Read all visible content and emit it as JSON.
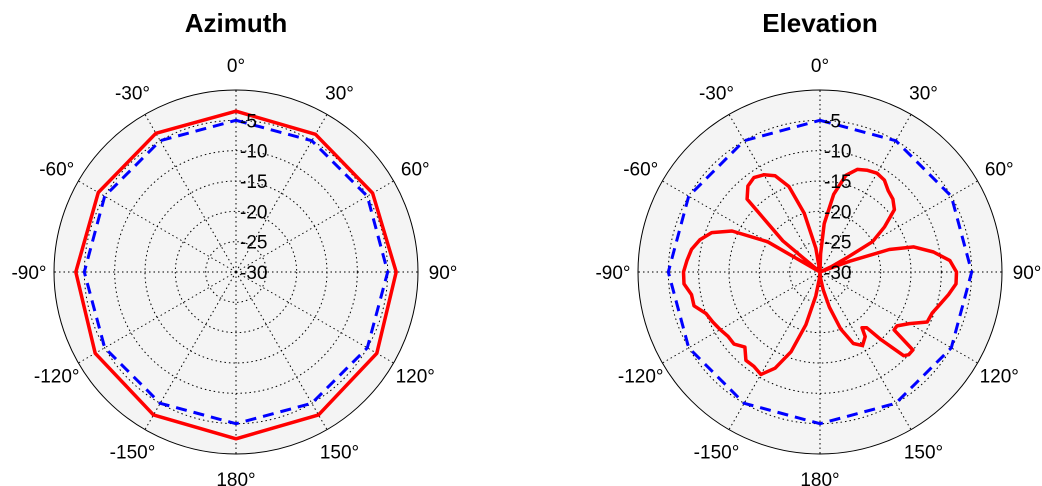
{
  "chart_data": [
    {
      "type": "polar",
      "title": "Azimuth",
      "rlim": [
        -30,
        0
      ],
      "r_ticks": [
        "-5",
        "-10",
        "-15",
        "-20",
        "-25",
        "-30"
      ],
      "angle_tick_values": [
        0,
        30,
        60,
        90,
        120,
        150,
        180,
        -150,
        -120,
        -90,
        -60,
        -30
      ],
      "angle_ticks": [
        "0°",
        "30°",
        "60°",
        "90°",
        "120°",
        "150°",
        "180°",
        "-150°",
        "-120°",
        "-90°",
        "-60°",
        "-30°"
      ],
      "grid": true,
      "series": [
        {
          "color": "#0000ff",
          "style": "dashed",
          "angles": [
            0,
            30,
            60,
            90,
            120,
            150,
            180,
            -150,
            -120,
            -90,
            -60,
            -30
          ],
          "values": [
            -5,
            -5,
            -5,
            -5,
            -5,
            -5,
            -5,
            -5,
            -5,
            -5,
            -5,
            -5
          ]
        },
        {
          "color": "#ff0000",
          "style": "solid",
          "angles": [
            0,
            30,
            60,
            90,
            120,
            150,
            180,
            -150,
            -120,
            -90,
            -60,
            -30
          ],
          "values": [
            -3.5,
            -3.8,
            -4.0,
            -3.6,
            -3.2,
            -2.8,
            -2.5,
            -2.8,
            -3.2,
            -3.6,
            -3.8,
            -3.6
          ]
        }
      ]
    },
    {
      "type": "polar",
      "title": "Elevation",
      "rlim": [
        -30,
        0
      ],
      "r_ticks": [
        "-5",
        "-10",
        "-15",
        "-20",
        "-25",
        "-30"
      ],
      "angle_tick_values": [
        0,
        30,
        60,
        90,
        120,
        150,
        180,
        -150,
        -120,
        -90,
        -60,
        -30
      ],
      "angle_ticks": [
        "0°",
        "30°",
        "60°",
        "90°",
        "120°",
        "150°",
        "180°",
        "-150°",
        "-120°",
        "-90°",
        "-60°",
        "-30°"
      ],
      "grid": true,
      "series": [
        {
          "color": "#0000ff",
          "style": "dashed",
          "angles": [
            0,
            30,
            60,
            90,
            120,
            150,
            180,
            -150,
            -120,
            -90,
            -60,
            -30
          ],
          "values": [
            -5,
            -5,
            -5,
            -5,
            -5,
            -5,
            -5,
            -5,
            -5,
            -5,
            -5,
            -5
          ]
        },
        {
          "color": "#ff0000",
          "style": "solid",
          "angles": [
            0,
            2,
            5,
            10,
            15,
            20,
            25,
            30,
            35,
            40,
            45,
            50,
            55,
            60,
            62,
            65,
            68,
            70,
            72,
            75,
            80,
            85,
            90,
            95,
            100,
            105,
            110,
            115,
            120,
            125,
            128,
            130,
            133,
            135,
            138,
            140,
            143,
            145,
            150,
            155,
            160,
            165,
            170,
            175,
            178,
            180,
            -178,
            -175,
            -170,
            -165,
            -160,
            -155,
            -150,
            -145,
            -140,
            -135,
            -130,
            -125,
            -120,
            -115,
            -110,
            -105,
            -100,
            -95,
            -90,
            -85,
            -80,
            -75,
            -70,
            -65,
            -60,
            -55,
            -50,
            -45,
            -40,
            -35,
            -30,
            -25,
            -20,
            -15,
            -10,
            -5,
            -2,
            0
          ],
          "values": [
            -30,
            -27,
            -22,
            -17,
            -13.5,
            -12,
            -11.5,
            -11.2,
            -11.5,
            -12.5,
            -13,
            -14,
            -17,
            -20,
            -25,
            -28,
            -30,
            -25,
            -18,
            -14,
            -11,
            -8.5,
            -7.5,
            -7.5,
            -8.5,
            -9.5,
            -10.3,
            -10.5,
            -13,
            -14.5,
            -14.5,
            -10,
            -10,
            -10.5,
            -15,
            -18,
            -18.5,
            -17,
            -16,
            -17,
            -20,
            -24,
            -27,
            -29,
            -30,
            -30,
            -30,
            -29,
            -26,
            -21,
            -16,
            -12.5,
            -10.5,
            -11,
            -11,
            -12.5,
            -11.5,
            -11.5,
            -11,
            -10.5,
            -10,
            -8.5,
            -8.5,
            -7.5,
            -7.5,
            -8,
            -8.5,
            -9.5,
            -11,
            -14,
            -20,
            -30,
            -22,
            -13,
            -11.5,
            -11,
            -11.5,
            -12.5,
            -15,
            -20,
            -26,
            -30,
            -30,
            -30
          ]
        }
      ]
    }
  ]
}
